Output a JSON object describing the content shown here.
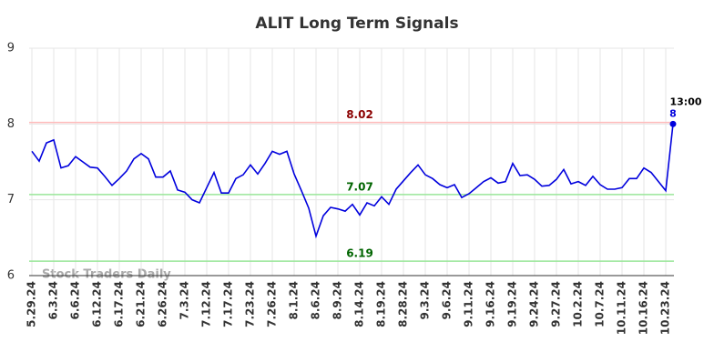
{
  "chart_data": {
    "type": "line",
    "title": "ALIT Long Term Signals",
    "watermark": "Stock Traders Daily",
    "categories": [
      "5.29.24",
      null,
      null,
      "6.3.24",
      null,
      null,
      "6.6.24",
      null,
      null,
      "6.12.24",
      null,
      null,
      "6.17.24",
      null,
      null,
      "6.21.24",
      null,
      null,
      "6.26.24",
      null,
      null,
      "7.3.24",
      null,
      null,
      "7.12.24",
      null,
      null,
      "7.17.24",
      null,
      null,
      "7.23.24",
      null,
      null,
      "7.26.24",
      null,
      null,
      "8.1.24",
      null,
      null,
      "8.6.24",
      null,
      null,
      "8.9.24",
      null,
      null,
      "8.14.24",
      null,
      null,
      "8.19.24",
      null,
      null,
      "8.28.24",
      null,
      null,
      "9.3.24",
      null,
      null,
      "9.6.24",
      null,
      null,
      "9.11.24",
      null,
      null,
      "9.16.24",
      null,
      null,
      "9.19.24",
      null,
      null,
      "9.24.24",
      null,
      null,
      "9.27.24",
      null,
      null,
      "10.2.24",
      null,
      null,
      "10.7.24",
      null,
      null,
      "10.11.24",
      null,
      null,
      "10.16.24",
      null,
      null,
      "10.23.24",
      null
    ],
    "series": [
      {
        "color": "#0000dd",
        "values": [
          7.64,
          7.51,
          7.75,
          7.79,
          7.42,
          7.45,
          7.57,
          7.5,
          7.43,
          7.42,
          7.31,
          7.19,
          7.28,
          7.38,
          7.54,
          7.61,
          7.54,
          7.3,
          7.3,
          7.38,
          7.13,
          7.1,
          7.0,
          6.96,
          7.16,
          7.36,
          7.09,
          7.09,
          7.28,
          7.33,
          7.46,
          7.34,
          7.48,
          7.64,
          7.6,
          7.64,
          7.34,
          7.12,
          6.89,
          6.52,
          6.79,
          6.9,
          6.88,
          6.85,
          6.94,
          6.8,
          6.96,
          6.92,
          7.04,
          6.94,
          7.14,
          7.25,
          7.36,
          7.46,
          7.33,
          7.28,
          7.2,
          7.16,
          7.2,
          7.03,
          7.08,
          7.16,
          7.24,
          7.29,
          7.22,
          7.24,
          7.48,
          7.32,
          7.33,
          7.27,
          7.18,
          7.19,
          7.27,
          7.4,
          7.21,
          7.24,
          7.19,
          7.31,
          7.2,
          7.14,
          7.14,
          7.16,
          7.28,
          7.28,
          7.42,
          7.36,
          7.24,
          7.12,
          8
        ]
      }
    ],
    "last_time_label": "13:00",
    "levels": [
      {
        "value": 8.02,
        "line_color": "#ffbbbb",
        "label_color": "#8b0000"
      },
      {
        "value": 7.07,
        "line_color": "#99e699",
        "label_color": "#006400"
      },
      {
        "value": 6.19,
        "line_color": "#99e699",
        "label_color": "#006400"
      }
    ],
    "ylim": [
      6,
      9
    ],
    "yticks": [
      6,
      7,
      8,
      9
    ],
    "grid": true
  }
}
